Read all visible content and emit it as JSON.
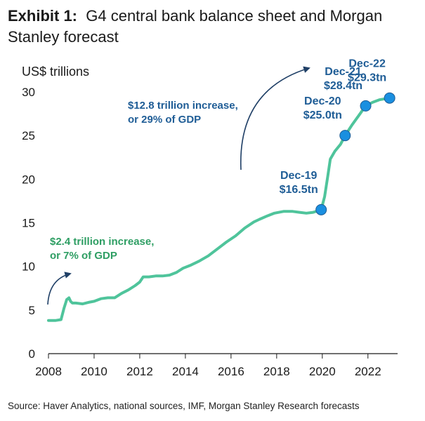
{
  "title": {
    "bold": "Exhibit 1:",
    "rest": "G4 central bank balance sheet and Morgan Stanley forecast"
  },
  "source": "Source: Haver Analytics, national sources, IMF, Morgan Stanley Research forecasts",
  "colors": {
    "line": "#4fc49b",
    "marker": "#1a8fe0",
    "marker_stroke": "#1f5d96",
    "label_blue": "#1f5d96",
    "label_green": "#2e9e63",
    "axis": "#1a1a1a"
  },
  "chart_data": {
    "type": "line",
    "title": "G4 central bank balance sheet and Morgan Stanley forecast",
    "ylabel": "US$ trillions",
    "xlabel": "",
    "ylim": [
      0,
      30
    ],
    "xlim": [
      2008,
      2023.3
    ],
    "yticks": [
      0,
      5,
      10,
      15,
      20,
      25,
      30
    ],
    "xticks": [
      2008,
      2010,
      2012,
      2014,
      2016,
      2018,
      2020,
      2022
    ],
    "series": [
      {
        "name": "G4 central bank balance sheet",
        "x": [
          2008.0,
          2008.3,
          2008.55,
          2008.68,
          2008.8,
          2008.9,
          2008.97,
          2009.05,
          2009.2,
          2009.5,
          2009.8,
          2010.0,
          2010.3,
          2010.6,
          2010.9,
          2011.2,
          2011.5,
          2011.8,
          2012.0,
          2012.15,
          2012.4,
          2012.7,
          2013.0,
          2013.3,
          2013.6,
          2013.9,
          2014.2,
          2014.6,
          2015.0,
          2015.4,
          2015.8,
          2016.2,
          2016.6,
          2017.0,
          2017.25,
          2017.6,
          2017.9,
          2018.3,
          2018.7,
          2019.0,
          2019.3,
          2019.6,
          2019.95,
          2020.1,
          2020.25,
          2020.35,
          2020.55,
          2020.8,
          2021.0,
          2021.3,
          2021.6,
          2021.9,
          2022.2,
          2022.5,
          2022.95
        ],
        "values": [
          3.8,
          3.8,
          3.9,
          5.2,
          6.2,
          6.4,
          6.0,
          5.8,
          5.8,
          5.7,
          5.9,
          6.0,
          6.3,
          6.4,
          6.4,
          6.9,
          7.3,
          7.8,
          8.2,
          8.8,
          8.8,
          8.9,
          8.9,
          9.0,
          9.3,
          9.8,
          10.1,
          10.6,
          11.2,
          12.0,
          12.8,
          13.5,
          14.4,
          15.1,
          15.4,
          15.8,
          16.1,
          16.3,
          16.3,
          16.2,
          16.1,
          16.2,
          16.5,
          18.0,
          20.5,
          22.3,
          23.2,
          24.0,
          25.0,
          26.2,
          27.3,
          28.4,
          28.8,
          29.1,
          29.3
        ]
      }
    ],
    "markers": [
      {
        "x": 2019.95,
        "y": 16.5,
        "date": "Dec-19",
        "value": "$16.5tn"
      },
      {
        "x": 2021.0,
        "y": 25.0,
        "date": "Dec-20",
        "value": "$25.0tn"
      },
      {
        "x": 2021.9,
        "y": 28.4,
        "date": "Dec-21",
        "value": "$28.4tn"
      },
      {
        "x": 2022.95,
        "y": 29.3,
        "date": "Dec-22",
        "value": "$29.3tn"
      }
    ],
    "annotations": [
      {
        "id": "qe1",
        "line1": "$2.4 trillion increase,",
        "line2": "or 7% of GDP",
        "color": "green"
      },
      {
        "id": "covid",
        "line1": "$12.8 trillion increase,",
        "line2": "or 29% of GDP",
        "color": "blue"
      }
    ]
  }
}
